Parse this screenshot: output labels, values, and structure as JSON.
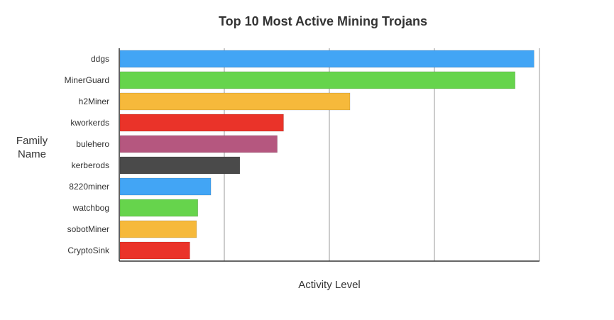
{
  "chart_data": {
    "type": "bar",
    "orientation": "horizontal",
    "title": "Top 10 Most Active Mining Trojans",
    "xlabel": "Activity Level",
    "ylabel": "Family Name",
    "categories": [
      "ddgs",
      "MinerGuard",
      "h2Miner",
      "kworkerds",
      "bulehero",
      "kerberods",
      "8220miner",
      "watchbog",
      "sobotMiner",
      "CryptoSink"
    ],
    "values": [
      98.7,
      94.2,
      54.9,
      39.1,
      37.6,
      28.7,
      21.8,
      18.7,
      18.4,
      16.8
    ],
    "xlim": [
      0,
      100
    ],
    "grid": true,
    "colors": [
      "#42a5f5",
      "#66d44c",
      "#f6b93b",
      "#ea3329",
      "#b5577f",
      "#4a4a4a",
      "#42a5f5",
      "#66d44c",
      "#f6b93b",
      "#ea3329"
    ],
    "axis_color": "#333333",
    "grid_color": "#999999"
  }
}
